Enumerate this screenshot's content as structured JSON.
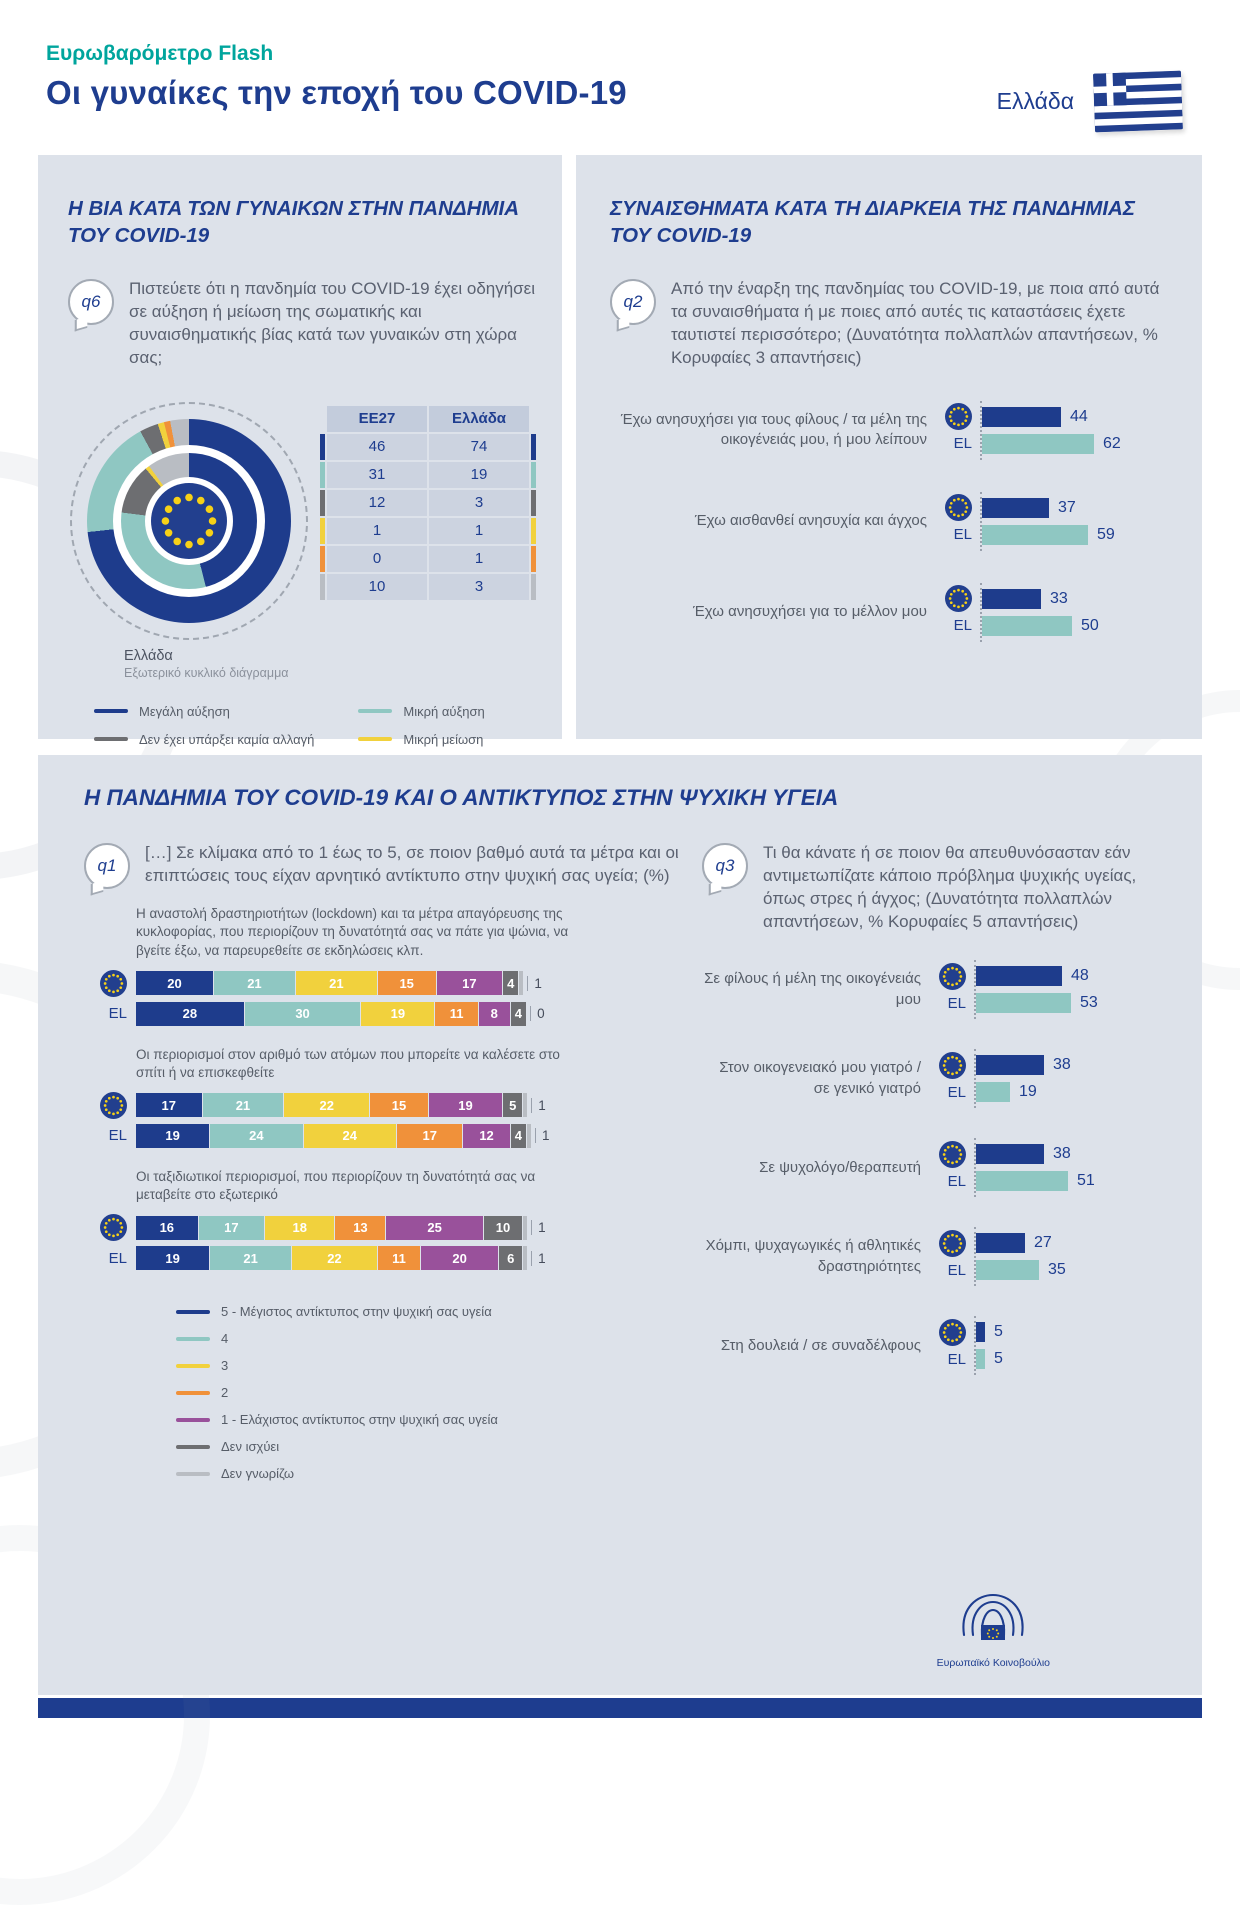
{
  "page": {
    "kicker": "Ευρωβαρόμετρο Flash",
    "title": "Οι γυναίκες την εποχή του COVID-19",
    "country": "Ελλάδα",
    "ep_caption": "Ευρωπαϊκό Κοινοβούλιο"
  },
  "colors": {
    "blue": "#1e3c8c",
    "teal": "#8fc7c2",
    "yellow": "#f1d13d",
    "orange": "#f0913a",
    "purple": "#99519b",
    "dark_gray": "#6d6e71",
    "light_gray": "#b9bdc3",
    "accent_teal": "#00a59d",
    "title_blue": "#1e3d8f"
  },
  "sections": {
    "violence_title": "Η ΒΙΑ ΚΑΤΑ ΤΩΝ ΓΥΝΑΙΚΩΝ ΣΤΗΝ ΠΑΝΔΗΜΙΑ ΤΟΥ COVID-19",
    "feelings_title": "ΣΥΝΑΙΣΘΗΜΑΤΑ ΚΑΤΑ ΤΗ ΔΙΑΡΚΕΙΑ ΤΗΣ ΠΑΝΔΗΜΙΑΣ ΤΟΥ COVID-19",
    "mental_title": "Η ΠΑΝΔΗΜΙΑ ΤΟΥ COVID-19 ΚΑΙ Ο ΑΝΤΙΚΤΥΠΟΣ ΣΤΗΝ ΨΥΧΙΚΗ ΥΓΕΙΑ"
  },
  "chart_data": [
    {
      "id": "q6_donut",
      "type": "pie",
      "q_label": "q6",
      "title": "Πιστεύετε ότι η πανδημία του COVID-19 έχει οδηγήσει σε αύξηση ή μείωση της σωματικής και συναισθηματικής βίας κατά των γυναικών στη χώρα σας;",
      "categories": [
        "Μεγάλη αύξηση",
        "Μικρή αύξηση",
        "Δεν έχει υπάρξει καμία αλλαγή",
        "Μικρή μείωση",
        "Μεγάλη μείωση",
        "Δεν γνωρίζω"
      ],
      "category_colors": [
        "#1e3c8c",
        "#8fc7c2",
        "#6d6e71",
        "#f1d13d",
        "#f0913a",
        "#b9bdc3"
      ],
      "series": [
        {
          "name": "EE27",
          "ring": "inner",
          "values": [
            46,
            31,
            12,
            1,
            0,
            10
          ]
        },
        {
          "name": "Ελλάδα",
          "ring": "outer",
          "values": [
            74,
            19,
            3,
            1,
            1,
            3
          ]
        }
      ],
      "table_headers": [
        "EE27",
        "Ελλάδα"
      ],
      "caption_title": "Ελλάδα",
      "caption_sub": "Εξωτερικό κυκλικό διάγραμμα",
      "legend_columns": [
        [
          {
            "label": "Μεγάλη αύξηση",
            "color": "#1e3c8c"
          },
          {
            "label": "Δεν έχει υπάρξει καμία αλλαγή",
            "color": "#6d6e71"
          },
          {
            "label": "Μεγάλη μείωση",
            "color": "#f0913a"
          }
        ],
        [
          {
            "label": "Μικρή αύξηση",
            "color": "#8fc7c2"
          },
          {
            "label": "Μικρή μείωση",
            "color": "#f1d13d"
          },
          {
            "label": "Δεν γνωρίζω",
            "color": "#b9bdc3"
          }
        ]
      ]
    },
    {
      "id": "q2_bars",
      "type": "bar",
      "q_label": "q2",
      "title": "Από την έναρξη της πανδημίας του COVID-19, με ποια από αυτά τα συναισθήματα ή με ποιες από αυτές τις καταστάσεις έχετε ταυτιστεί περισσότερο; (Δυνατότητα πολλαπλών απαντήσεων, % Κορυφαίες 3 απαντήσεις)",
      "el_label": "EL",
      "series_names": [
        "EU27",
        "EL"
      ],
      "items": [
        {
          "label": "Έχω ανησυχήσει για τους φίλους / τα μέλη της οικογένειάς μου, ή μου λείπουν",
          "eu": 44,
          "el": 62
        },
        {
          "label": "Έχω αισθανθεί ανησυχία και άγχος",
          "eu": 37,
          "el": 59
        },
        {
          "label": "Έχω ανησυχήσει για το μέλλον μου",
          "eu": 33,
          "el": 50
        }
      ]
    },
    {
      "id": "q1_stacked",
      "type": "bar",
      "stacked": true,
      "q_label": "q1",
      "title": "[…] Σε κλίμακα από το 1 έως το 5, σε ποιον βαθμό αυτά τα μέτρα και οι επιπτώσεις τους είχαν αρνητικό αντίκτυπο στην ψυχική σας υγεία; (%)",
      "el_label": "EL",
      "segment_colors": [
        "#1e3c8c",
        "#8fc7c2",
        "#f1d13d",
        "#f0913a",
        "#99519b",
        "#6d6e71",
        "#b9bdc3"
      ],
      "scale_labels": [
        "5 - Μέγιστος αντίκτυπος στην ψυχική σας υγεία",
        "4",
        "3",
        "2",
        "1 - Ελάχιστος αντίκτυπος στην ψυχική σας υγεία",
        "Δεν ισχύει",
        "Δεν γνωρίζω"
      ],
      "groups": [
        {
          "label": "Η αναστολή δραστηριοτήτων (lockdown) και τα μέτρα απαγόρευσης της κυκλοφορίας, που περιορίζουν τη δυνατότητά σας να πάτε για ψώνια, να βγείτε έξω, να παρευρεθείτε σε εκδηλώσεις κλπ.",
          "eu": [
            20,
            21,
            21,
            15,
            17,
            4,
            1
          ],
          "el": [
            28,
            30,
            19,
            11,
            8,
            4,
            0
          ]
        },
        {
          "label": "Οι περιορισμοί στον αριθμό των ατόμων που μπορείτε να καλέσετε στο σπίτι ή να επισκεφθείτε",
          "eu": [
            17,
            21,
            22,
            15,
            19,
            5,
            1
          ],
          "el": [
            19,
            24,
            24,
            17,
            12,
            4,
            1
          ]
        },
        {
          "label": "Οι ταξιδιωτικοί περιορισμοί, που περιορίζουν τη δυνατότητά σας να μεταβείτε στο εξωτερικό",
          "eu": [
            16,
            17,
            18,
            13,
            25,
            10,
            1
          ],
          "el": [
            19,
            21,
            22,
            11,
            20,
            6,
            1
          ]
        }
      ]
    },
    {
      "id": "q3_bars",
      "type": "bar",
      "q_label": "q3",
      "title": "Τι θα κάνατε ή σε ποιον θα απευθυνόσασταν εάν αντιμετωπίζατε κάποιο πρόβλημα ψυχικής υγείας, όπως στρες ή άγχος; (Δυνατότητα πολλαπλών απαντήσεων, % Κορυφαίες 5 απαντήσεις)",
      "el_label": "EL",
      "series_names": [
        "EU27",
        "EL"
      ],
      "items": [
        {
          "label": "Σε φίλους ή μέλη της οικογένειάς μου",
          "eu": 48,
          "el": 53
        },
        {
          "label": "Στον οικογενειακό μου γιατρό / σε γενικό γιατρό",
          "eu": 38,
          "el": 19
        },
        {
          "label": "Σε ψυχολόγο/θεραπευτή",
          "eu": 38,
          "el": 51
        },
        {
          "label": "Χόμπι, ψυχαγωγικές ή αθλητικές δραστηριότητες",
          "eu": 27,
          "el": 35
        },
        {
          "label": "Στη δουλειά / σε συναδέλφους",
          "eu": 5,
          "el": 5
        }
      ]
    }
  ]
}
